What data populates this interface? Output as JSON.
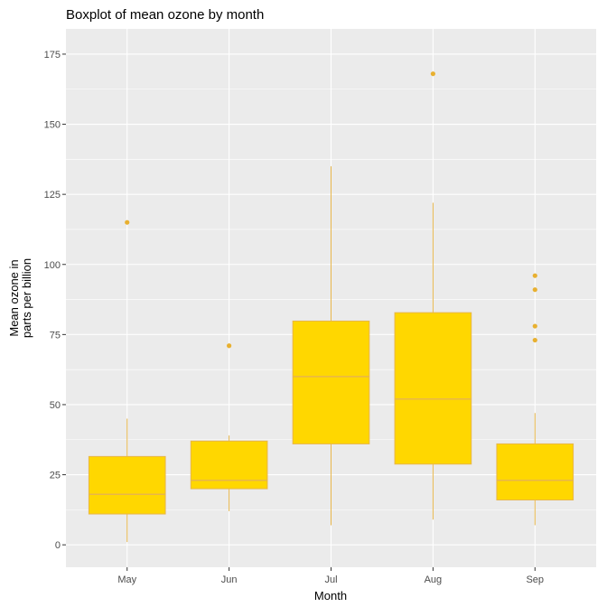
{
  "chart_data": {
    "type": "boxplot",
    "title": "Boxplot of mean ozone by month",
    "xlabel": "Month",
    "ylabel_lines": [
      "Mean ozone in",
      "parts per billion"
    ],
    "categories": [
      "May",
      "Jun",
      "Jul",
      "Aug",
      "Sep"
    ],
    "ylim": [
      -8,
      184
    ],
    "yticks": [
      0,
      25,
      50,
      75,
      100,
      125,
      150,
      175
    ],
    "grid": true,
    "box_fill": "#FFD700",
    "box_line": "#E8B64A",
    "outlier_color": "#E8B030",
    "panel_background": "#EBEBEB",
    "grid_color": "#FFFFFF",
    "boxes": [
      {
        "category": "May",
        "whisker_low": 1,
        "q1": 11,
        "median": 18,
        "q3": 31.5,
        "whisker_high": 45,
        "outliers": [
          115
        ]
      },
      {
        "category": "Jun",
        "whisker_low": 12,
        "q1": 20,
        "median": 23,
        "q3": 37,
        "whisker_high": 39,
        "outliers": [
          71
        ]
      },
      {
        "category": "Jul",
        "whisker_low": 7,
        "q1": 36,
        "median": 60,
        "q3": 79.8,
        "whisker_high": 135,
        "outliers": []
      },
      {
        "category": "Aug",
        "whisker_low": 9,
        "q1": 28.8,
        "median": 52,
        "q3": 82.8,
        "whisker_high": 122,
        "outliers": [
          168
        ]
      },
      {
        "category": "Sep",
        "whisker_low": 7,
        "q1": 16,
        "median": 23,
        "q3": 36,
        "whisker_high": 47,
        "outliers": [
          73,
          78,
          91,
          96
        ]
      }
    ]
  }
}
